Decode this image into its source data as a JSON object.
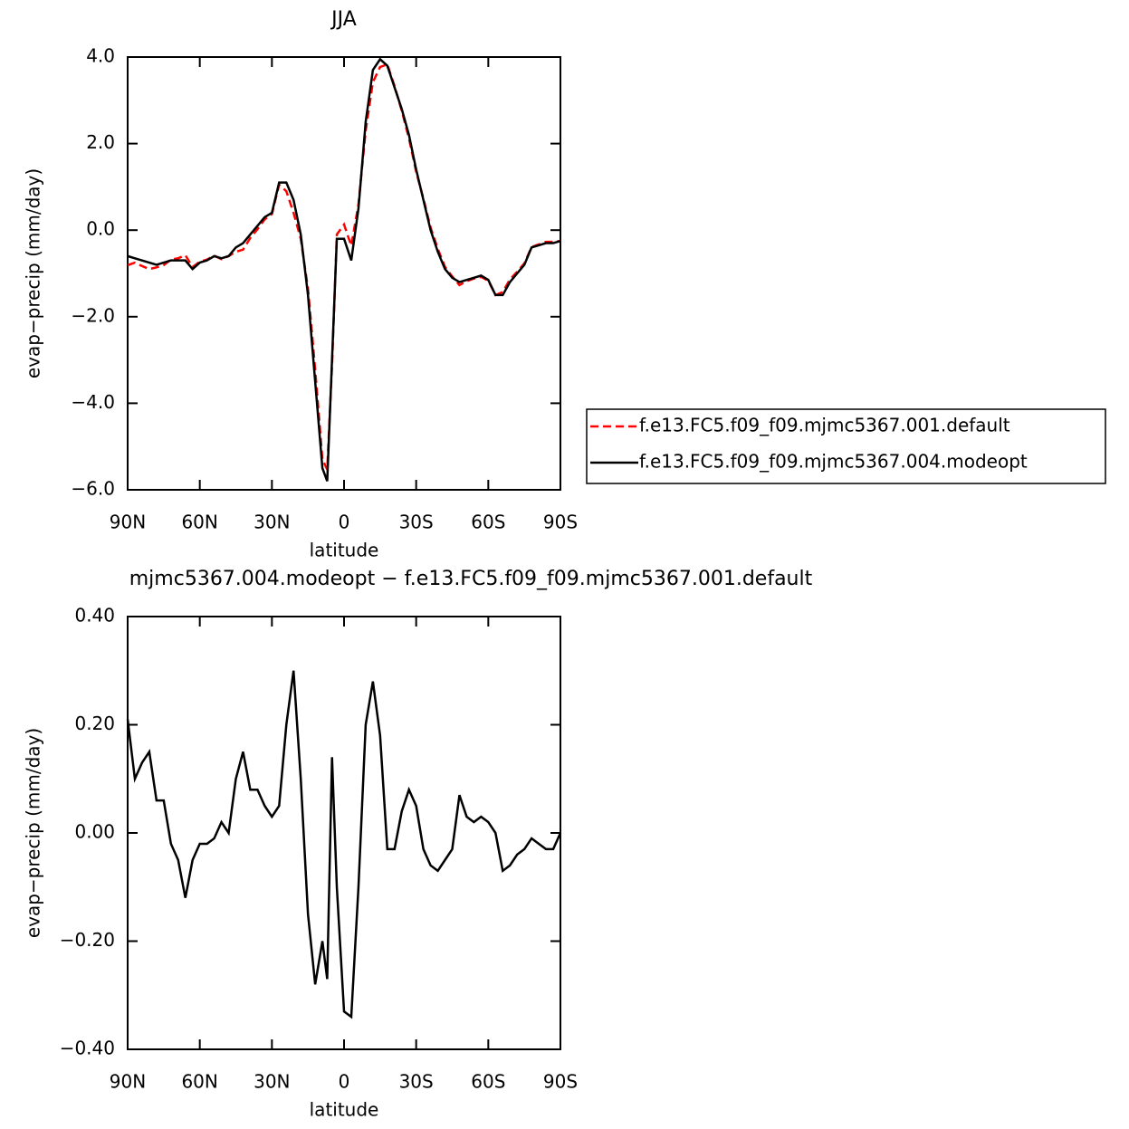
{
  "chart_data": [
    {
      "type": "line",
      "title": "JJA",
      "xlabel": "latitude",
      "ylabel": "evap−precip (mm/day)",
      "x": [
        90,
        87,
        84,
        81,
        78,
        75,
        72,
        69,
        66,
        63,
        60,
        57,
        54,
        51,
        48,
        45,
        42,
        39,
        36,
        33,
        30,
        27,
        24,
        21,
        18,
        15,
        12,
        9,
        7,
        5,
        3,
        0,
        -3,
        -6,
        -9,
        -12,
        -15,
        -18,
        -21,
        -24,
        -27,
        -30,
        -33,
        -36,
        -39,
        -42,
        -45,
        -48,
        -51,
        -54,
        -57,
        -60,
        -63,
        -66,
        -69,
        -72,
        -75,
        -78,
        -81,
        -84,
        -87,
        -90
      ],
      "series": [
        {
          "name": "f.e13.FC5.f09_f09.mjmc5367.001.default",
          "color": "#ff0000",
          "linestyle": "dashed",
          "values": [
            -0.81,
            -0.75,
            -0.83,
            -0.9,
            -0.86,
            -0.81,
            -0.68,
            -0.65,
            -0.58,
            -0.85,
            -0.73,
            -0.68,
            -0.59,
            -0.67,
            -0.6,
            -0.5,
            -0.45,
            -0.18,
            0.02,
            0.25,
            0.37,
            1.05,
            0.9,
            0.4,
            -0.2,
            -1.35,
            -3.22,
            -5.3,
            -5.53,
            -3.14,
            -0.1,
            0.13,
            -0.36,
            0.6,
            2.3,
            3.42,
            3.77,
            3.83,
            3.33,
            2.76,
            2.12,
            1.35,
            0.73,
            0.06,
            -0.43,
            -0.85,
            -1.07,
            -1.27,
            -1.18,
            -1.12,
            -1.08,
            -1.17,
            -1.5,
            -1.43,
            -1.14,
            -0.96,
            -0.77,
            -0.39,
            -0.33,
            -0.27,
            -0.27,
            -0.25
          ]
        },
        {
          "name": "f.e13.FC5.f09_f09.mjmc5367.004.modeopt",
          "color": "#000000",
          "linestyle": "solid",
          "values": [
            -0.6,
            -0.65,
            -0.7,
            -0.75,
            -0.8,
            -0.75,
            -0.7,
            -0.7,
            -0.7,
            -0.9,
            -0.75,
            -0.7,
            -0.6,
            -0.65,
            -0.6,
            -0.4,
            -0.3,
            -0.1,
            0.1,
            0.3,
            0.4,
            1.1,
            1.1,
            0.7,
            -0.1,
            -1.5,
            -3.5,
            -5.5,
            -5.8,
            -3.0,
            -0.2,
            -0.2,
            -0.7,
            0.5,
            2.5,
            3.7,
            3.95,
            3.8,
            3.3,
            2.8,
            2.2,
            1.4,
            0.7,
            0.0,
            -0.5,
            -0.9,
            -1.1,
            -1.2,
            -1.15,
            -1.1,
            -1.05,
            -1.15,
            -1.5,
            -1.5,
            -1.2,
            -1.0,
            -0.8,
            -0.4,
            -0.35,
            -0.3,
            -0.3,
            -0.25
          ]
        }
      ],
      "xlim": [
        90,
        -90
      ],
      "xticks": [
        {
          "value": 90,
          "label": "90N"
        },
        {
          "value": 60,
          "label": "60N"
        },
        {
          "value": 30,
          "label": "30N"
        },
        0,
        {
          "value": -30,
          "label": "30S"
        },
        {
          "value": -60,
          "label": "60S"
        },
        {
          "value": -90,
          "label": "90S"
        }
      ],
      "ylim": [
        -6,
        4
      ],
      "yticks": [
        {
          "value": -6,
          "label": "−6.0"
        },
        {
          "value": -4,
          "label": "−4.0"
        },
        {
          "value": -2,
          "label": "−2.0"
        },
        {
          "value": 0,
          "label": "0.0"
        },
        {
          "value": 2,
          "label": "2.0"
        },
        {
          "value": 4,
          "label": "4.0"
        }
      ]
    },
    {
      "type": "line",
      "title": "mjmc5367.004.modeopt − f.e13.FC5.f09_f09.mjmc5367.001.default",
      "xlabel": "latitude",
      "ylabel": "evap−precip (mm/day)",
      "x": [
        90,
        87,
        84,
        81,
        78,
        75,
        72,
        69,
        66,
        63,
        60,
        57,
        54,
        51,
        48,
        45,
        42,
        39,
        36,
        33,
        30,
        27,
        24,
        21,
        18,
        15,
        12,
        9,
        7,
        5,
        3,
        0,
        -3,
        -6,
        -9,
        -12,
        -15,
        -18,
        -21,
        -24,
        -27,
        -30,
        -33,
        -36,
        -39,
        -42,
        -45,
        -48,
        -51,
        -54,
        -57,
        -60,
        -63,
        -66,
        -69,
        -72,
        -75,
        -78,
        -81,
        -84,
        -87,
        -90
      ],
      "color": "#000000",
      "values": [
        0.21,
        0.1,
        0.13,
        0.15,
        0.06,
        0.06,
        -0.02,
        -0.05,
        -0.12,
        -0.05,
        -0.02,
        -0.02,
        -0.01,
        0.02,
        0.0,
        0.1,
        0.15,
        0.08,
        0.08,
        0.05,
        0.03,
        0.05,
        0.2,
        0.3,
        0.1,
        -0.15,
        -0.28,
        -0.2,
        -0.27,
        0.14,
        -0.1,
        -0.33,
        -0.34,
        -0.1,
        0.2,
        0.28,
        0.18,
        -0.03,
        -0.03,
        0.04,
        0.08,
        0.05,
        -0.03,
        -0.06,
        -0.07,
        -0.05,
        -0.03,
        0.07,
        0.03,
        0.02,
        0.03,
        0.02,
        0.0,
        -0.07,
        -0.06,
        -0.04,
        -0.03,
        -0.01,
        -0.02,
        -0.03,
        -0.03,
        0.0
      ],
      "xlim": [
        90,
        -90
      ],
      "xticks": [
        {
          "value": 90,
          "label": "90N"
        },
        {
          "value": 60,
          "label": "60N"
        },
        {
          "value": 30,
          "label": "30N"
        },
        0,
        {
          "value": -30,
          "label": "30S"
        },
        {
          "value": -60,
          "label": "60S"
        },
        {
          "value": -90,
          "label": "90S"
        }
      ],
      "ylim": [
        -0.4,
        0.4
      ],
      "yticks": [
        {
          "value": -0.4,
          "label": "−0.40"
        },
        {
          "value": -0.2,
          "label": "−0.20"
        },
        {
          "value": 0,
          "label": "0.00"
        },
        {
          "value": 0.2,
          "label": "0.20"
        },
        {
          "value": 0.4,
          "label": "0.40"
        }
      ]
    }
  ]
}
